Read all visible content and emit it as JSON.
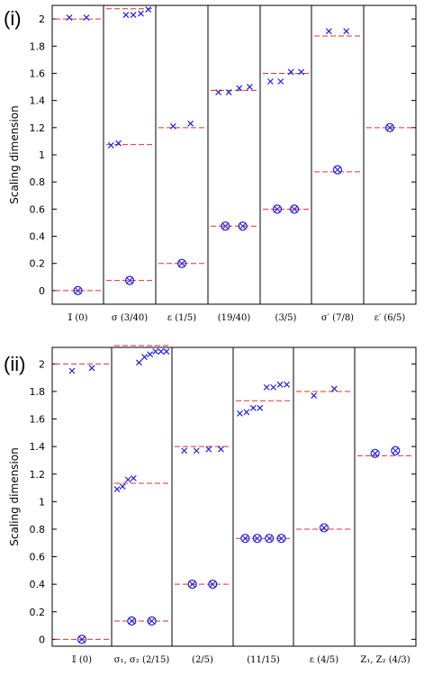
{
  "chart_data": [
    {
      "type": "scatter",
      "panel_label": "(i)",
      "ylabel": "Scaling dimension",
      "ylim": [
        -0.1,
        2.1
      ],
      "yticks": [
        "0",
        "0.2",
        "0.4",
        "0.6",
        "0.8",
        "1",
        "1.2",
        "1.4",
        "1.6",
        "1.8",
        "2"
      ],
      "marker_color": "#2020d0",
      "reference_line_color": "#e03030",
      "grid": false,
      "categories": [
        {
          "label": "𝕀 (0)",
          "exact": [
            0,
            2
          ],
          "cross": [
            2.01,
            2.01
          ],
          "circled": [
            0
          ]
        },
        {
          "label": "σ (3/40)",
          "exact": [
            0.075,
            1.075,
            2.075
          ],
          "cross": [
            1.07,
            1.085,
            2.03,
            2.03,
            2.04,
            2.07
          ],
          "circled": [
            0.075
          ]
        },
        {
          "label": "ε (1/5)",
          "exact": [
            0.2,
            1.2
          ],
          "cross": [
            1.21,
            1.23
          ],
          "circled": [
            0.2
          ]
        },
        {
          "label": "(19/40)",
          "exact": [
            0.475,
            1.475
          ],
          "cross": [
            1.46,
            1.46,
            1.49,
            1.5
          ],
          "circled": [
            0.475,
            0.475
          ]
        },
        {
          "label": "(3/5)",
          "exact": [
            0.6,
            1.6
          ],
          "cross": [
            1.54,
            1.54,
            1.61,
            1.61
          ],
          "circled": [
            0.6,
            0.6
          ]
        },
        {
          "label": "σ′ (7/8)",
          "exact": [
            0.875,
            1.875
          ],
          "cross": [
            1.91,
            1.91
          ],
          "circled": [
            0.89
          ]
        },
        {
          "label": "ε′ (6/5)",
          "exact": [
            1.2
          ],
          "cross": [],
          "circled": [
            1.2
          ]
        }
      ]
    },
    {
      "type": "scatter",
      "panel_label": "(ii)",
      "ylabel": "Scaling dimension",
      "ylim": [
        -0.05,
        2.12
      ],
      "yticks": [
        "0",
        "0.2",
        "0.4",
        "0.6",
        "0.8",
        "1",
        "1.2",
        "1.4",
        "1.6",
        "1.8",
        "2"
      ],
      "marker_color": "#2020d0",
      "reference_line_color": "#e03030",
      "grid": false,
      "categories": [
        {
          "label": "𝕀 (0)",
          "exact": [
            0,
            2
          ],
          "cross": [
            1.95,
            1.97
          ],
          "circled": [
            0
          ]
        },
        {
          "label": "σ₁, σ₂ (2/15)",
          "exact": [
            0.133,
            1.133,
            2.133
          ],
          "cross": [
            1.09,
            1.11,
            1.16,
            1.17,
            2.01,
            2.05,
            2.07,
            2.09,
            2.09,
            2.09
          ],
          "circled": [
            0.133,
            0.133
          ]
        },
        {
          "label": "(2/5)",
          "exact": [
            0.4,
            1.4
          ],
          "cross": [
            1.37,
            1.37,
            1.38,
            1.38
          ],
          "circled": [
            0.4,
            0.4
          ]
        },
        {
          "label": "(11/15)",
          "exact": [
            0.733,
            1.733
          ],
          "cross": [
            1.64,
            1.65,
            1.68,
            1.68,
            1.83,
            1.83,
            1.85,
            1.85
          ],
          "circled": [
            0.733,
            0.733,
            0.733,
            0.733
          ]
        },
        {
          "label": "ε (4/5)",
          "exact": [
            0.8,
            1.8
          ],
          "cross": [
            1.77,
            1.82
          ],
          "circled": [
            0.81
          ]
        },
        {
          "label": "Z₁, Z₂ (4/3)",
          "exact": [
            1.333
          ],
          "cross": [],
          "circled": [
            1.35,
            1.37
          ]
        }
      ]
    }
  ]
}
